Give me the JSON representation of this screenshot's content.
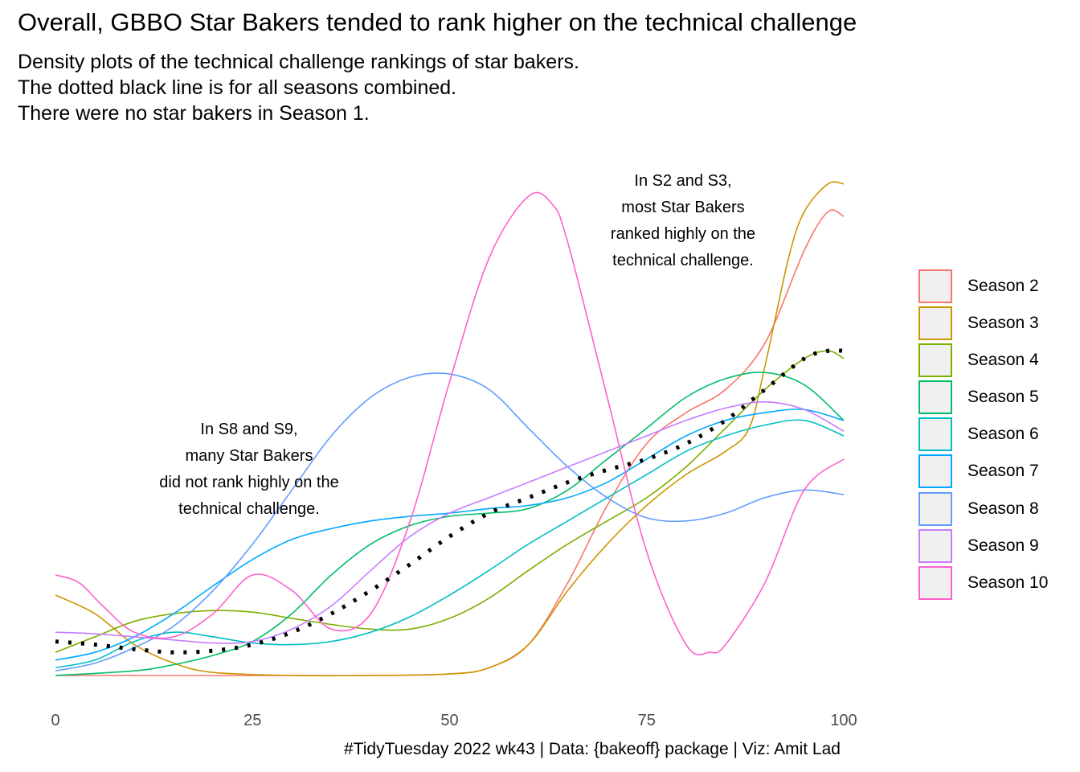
{
  "title": "Overall, GBBO Star Bakers tended to rank higher on the technical challenge",
  "subtitle": [
    "Density plots of the technical challenge rankings of star bakers.",
    "The dotted black line is for all seasons combined.",
    "There were no star bakers in Season 1."
  ],
  "annotations": {
    "s2_s3": [
      "In S2 and S3,",
      "most Star Bakers",
      "ranked highly on the",
      "technical challenge."
    ],
    "s8_s9": [
      "In S8 and S9,",
      "many Star Bakers",
      "did not rank highly on the",
      "technical challenge."
    ]
  },
  "caption": "#TidyTuesday 2022 wk43 | Data: {bakeoff} package | Viz: Amit Lad",
  "chart_data": {
    "type": "area",
    "title": "Overall, GBBO Star Bakers tended to rank higher on the technical challenge",
    "xlabel": "",
    "ylabel": "",
    "xlim": [
      0,
      100
    ],
    "ylim": [
      0,
      0.0335
    ],
    "x_ticks": [
      0,
      25,
      50,
      75,
      100
    ],
    "grid": false,
    "legend_position": "right",
    "series": [
      {
        "name": "Season 2",
        "color": "#F8766D",
        "dashed": false,
        "x": [
          0,
          10,
          20,
          30,
          40,
          50,
          55,
          60,
          65,
          70,
          75,
          80,
          85,
          90,
          95,
          98,
          100
        ],
        "y": [
          0.0,
          0.0,
          0.0,
          0.0,
          0.0,
          0.0001,
          0.0005,
          0.002,
          0.006,
          0.011,
          0.015,
          0.017,
          0.0185,
          0.0215,
          0.0275,
          0.03,
          0.0297
        ]
      },
      {
        "name": "Season 3",
        "color": "#CD9600",
        "dashed": false,
        "x": [
          0,
          5,
          10,
          15,
          20,
          30,
          40,
          50,
          55,
          60,
          65,
          70,
          75,
          80,
          85,
          88,
          90,
          93,
          95,
          98,
          100
        ],
        "y": [
          0.0052,
          0.004,
          0.002,
          0.0008,
          0.0002,
          0.0,
          0.0,
          0.0001,
          0.0005,
          0.002,
          0.0055,
          0.0085,
          0.011,
          0.013,
          0.0145,
          0.016,
          0.02,
          0.027,
          0.03,
          0.0318,
          0.0318
        ]
      },
      {
        "name": "Season 4",
        "color": "#7CAE00",
        "dashed": false,
        "x": [
          0,
          5,
          10,
          15,
          20,
          25,
          30,
          35,
          40,
          45,
          50,
          55,
          60,
          65,
          70,
          75,
          80,
          85,
          90,
          95,
          98,
          100
        ],
        "y": [
          0.0015,
          0.0025,
          0.0035,
          0.004,
          0.0042,
          0.0041,
          0.0037,
          0.0033,
          0.003,
          0.003,
          0.0037,
          0.005,
          0.0068,
          0.0085,
          0.01,
          0.0115,
          0.0135,
          0.016,
          0.0185,
          0.0205,
          0.021,
          0.0205
        ]
      },
      {
        "name": "Season 5",
        "color": "#00BE67",
        "dashed": false,
        "x": [
          0,
          10,
          15,
          20,
          25,
          30,
          35,
          40,
          45,
          50,
          55,
          60,
          65,
          70,
          75,
          80,
          85,
          90,
          95,
          100
        ],
        "y": [
          0.0,
          0.0003,
          0.0007,
          0.0013,
          0.0022,
          0.004,
          0.0065,
          0.0085,
          0.0097,
          0.0103,
          0.0105,
          0.0108,
          0.012,
          0.014,
          0.016,
          0.018,
          0.0192,
          0.0196,
          0.0188,
          0.0165
        ]
      },
      {
        "name": "Season 6",
        "color": "#00BFC4",
        "dashed": false,
        "x": [
          0,
          5,
          10,
          15,
          20,
          25,
          30,
          35,
          40,
          45,
          50,
          55,
          60,
          65,
          70,
          75,
          80,
          85,
          90,
          95,
          100
        ],
        "y": [
          0.0005,
          0.001,
          0.0022,
          0.0028,
          0.0025,
          0.0021,
          0.002,
          0.0022,
          0.0028,
          0.0038,
          0.0052,
          0.0068,
          0.0085,
          0.01,
          0.0115,
          0.013,
          0.0145,
          0.0155,
          0.0162,
          0.0165,
          0.0155
        ]
      },
      {
        "name": "Season 7",
        "color": "#00A9FF",
        "dashed": false,
        "x": [
          0,
          5,
          10,
          15,
          20,
          25,
          30,
          35,
          40,
          45,
          50,
          55,
          60,
          65,
          70,
          75,
          80,
          85,
          90,
          95,
          100
        ],
        "y": [
          0.001,
          0.0015,
          0.0025,
          0.004,
          0.0058,
          0.0075,
          0.0088,
          0.0095,
          0.01,
          0.0103,
          0.0105,
          0.0108,
          0.011,
          0.0115,
          0.0125,
          0.014,
          0.0155,
          0.0165,
          0.017,
          0.0172,
          0.0165
        ]
      },
      {
        "name": "Season 8",
        "color": "#619CFF",
        "dashed": false,
        "x": [
          0,
          5,
          10,
          15,
          20,
          25,
          30,
          35,
          40,
          45,
          50,
          55,
          60,
          65,
          70,
          75,
          80,
          85,
          90,
          95,
          100
        ],
        "y": [
          0.0003,
          0.0008,
          0.0018,
          0.0032,
          0.0055,
          0.0085,
          0.012,
          0.0155,
          0.018,
          0.0193,
          0.0195,
          0.0185,
          0.016,
          0.0135,
          0.0115,
          0.0102,
          0.01,
          0.0105,
          0.0115,
          0.012,
          0.0117
        ]
      },
      {
        "name": "Season 9",
        "color": "#C77CFF",
        "dashed": false,
        "x": [
          0,
          5,
          10,
          15,
          20,
          25,
          30,
          35,
          40,
          45,
          50,
          55,
          60,
          65,
          70,
          75,
          80,
          85,
          90,
          95,
          100
        ],
        "y": [
          0.0028,
          0.0027,
          0.0025,
          0.0023,
          0.0021,
          0.0022,
          0.003,
          0.0045,
          0.0068,
          0.009,
          0.0105,
          0.0115,
          0.0125,
          0.0135,
          0.0145,
          0.0155,
          0.0165,
          0.0173,
          0.0177,
          0.0172,
          0.0158
        ]
      },
      {
        "name": "Season 10",
        "color": "#FF61CC",
        "dashed": false,
        "x": [
          0,
          3,
          6,
          10,
          15,
          20,
          25,
          30,
          35,
          40,
          45,
          50,
          55,
          60,
          63,
          65,
          70,
          75,
          80,
          83,
          85,
          90,
          95,
          100
        ],
        "y": [
          0.0065,
          0.006,
          0.0045,
          0.0028,
          0.0025,
          0.004,
          0.0065,
          0.0055,
          0.003,
          0.004,
          0.01,
          0.019,
          0.027,
          0.031,
          0.0305,
          0.028,
          0.018,
          0.008,
          0.002,
          0.0015,
          0.002,
          0.006,
          0.012,
          0.014
        ]
      },
      {
        "name": "All seasons",
        "color": "#000000",
        "dashed": true,
        "x": [
          0,
          5,
          10,
          15,
          20,
          25,
          30,
          35,
          40,
          45,
          50,
          55,
          60,
          65,
          70,
          75,
          80,
          85,
          90,
          95,
          98,
          100
        ],
        "y": [
          0.0022,
          0.002,
          0.0017,
          0.0015,
          0.0016,
          0.002,
          0.0028,
          0.004,
          0.0055,
          0.0072,
          0.009,
          0.0105,
          0.0115,
          0.0125,
          0.0133,
          0.014,
          0.015,
          0.0165,
          0.0185,
          0.0205,
          0.021,
          0.021
        ]
      }
    ]
  }
}
